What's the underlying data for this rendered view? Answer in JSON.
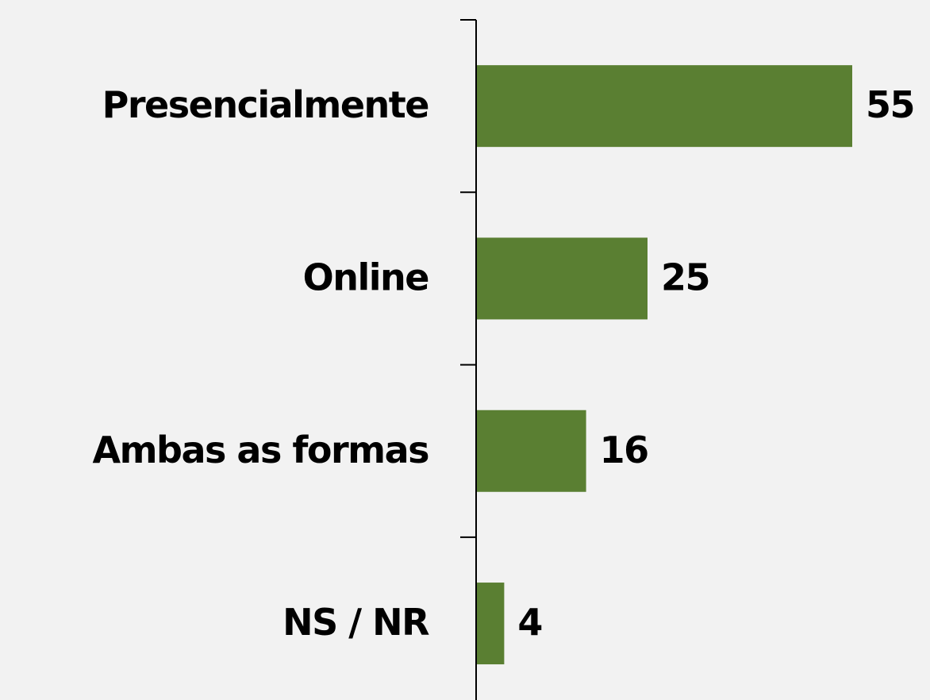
{
  "chart_data": {
    "type": "barh",
    "categories": [
      "Presencialmente",
      "Online",
      "Ambas as formas",
      "NS / NR"
    ],
    "values": [
      55,
      25,
      16,
      4
    ],
    "color": "#5a7f32"
  }
}
